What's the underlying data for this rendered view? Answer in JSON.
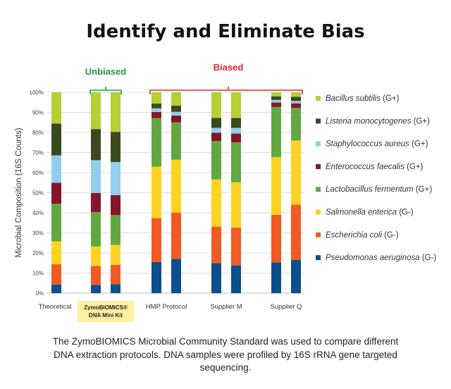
{
  "title": "Identify and Eliminate Bias",
  "caption": "The ZymoBIOMICS Microbial Community Standard was used to compare different DNA extraction protocols. DNA samples were profiled by 16S rRNA gene targeted sequencing.",
  "chart_data": {
    "type": "bar",
    "stacked": true,
    "ylabel": "Microbial Composition (16S Counts)",
    "ylim": [
      0,
      100
    ],
    "yticks": [
      "0%",
      "10%",
      "20%",
      "30%",
      "40%",
      "50%",
      "60%",
      "70%",
      "80%",
      "90%",
      "100%"
    ],
    "grid": true,
    "legend_position": "right",
    "groups": [
      {
        "label": "Theoretical",
        "highlight": false,
        "bars": 1
      },
      {
        "label": "ZymoBIOMICS® DNA Mini Kit",
        "label_lines": [
          "ZymoBIOMICS®",
          "DNA Mini Kit"
        ],
        "highlight": true,
        "highlight_color": "#fdf0a0",
        "bars": 2
      },
      {
        "label": "HMP Protocol",
        "highlight": false,
        "bars": 2
      },
      {
        "label": "Supplier M",
        "highlight": false,
        "bars": 2
      },
      {
        "label": "Supplier Q",
        "highlight": false,
        "bars": 2
      }
    ],
    "brackets": [
      {
        "label": "Unbiased",
        "color": "#1a9a4a",
        "groups": [
          "ZymoBIOMICS® DNA Mini Kit"
        ]
      },
      {
        "label": "Biased",
        "color": "#e0282a",
        "groups": [
          "HMP Protocol",
          "Supplier M",
          "Supplier Q"
        ]
      }
    ],
    "series": [
      {
        "name": "Pseudomonas aeruginosa",
        "gram": "(G-)",
        "color": "#0b4f8c",
        "values": [
          4.3,
          4.1,
          4.5,
          15.5,
          17.1,
          14.9,
          13.8,
          15.3,
          16.5
        ]
      },
      {
        "name": "Escherichia coli",
        "gram": " (G-)",
        "color": "#f15a24",
        "values": [
          10.1,
          9.4,
          9.6,
          21.9,
          23.0,
          18.2,
          18.9,
          23.7,
          27.5
        ]
      },
      {
        "name": "Salmonella enterica",
        "gram": "(G-)",
        "color": "#fdd323",
        "values": [
          11.4,
          9.7,
          9.9,
          25.6,
          26.4,
          23.5,
          22.5,
          28.7,
          32.0
        ]
      },
      {
        "name": "Lactobacillus fermentum",
        "gram": "(G+)",
        "color": "#62a744",
        "values": [
          18.7,
          17.2,
          14.9,
          24.2,
          18.6,
          19.1,
          19.9,
          25.0,
          16.2
        ]
      },
      {
        "name": "Enterococcus faecalis",
        "gram": "(G+)",
        "color": "#86152c",
        "values": [
          10.5,
          9.5,
          9.9,
          3.0,
          3.3,
          4.2,
          4.4,
          2.2,
          2.3
        ]
      },
      {
        "name": "Staphylococcus aureus",
        "gram": "(G+)",
        "color": "#93cdee",
        "values": [
          13.6,
          16.3,
          16.5,
          1.8,
          1.9,
          2.4,
          2.8,
          1.3,
          1.2
        ]
      },
      {
        "name": "Listeria monocytogenes",
        "gram": "(G+)",
        "color": "#3a4a1e",
        "values": [
          15.8,
          15.5,
          15.0,
          2.4,
          3.1,
          4.9,
          4.9,
          1.8,
          2.1
        ]
      },
      {
        "name": "Bacillus subtilis",
        "gram": "(G+)",
        "color": "#b5cf34",
        "values": [
          15.6,
          18.3,
          19.7,
          5.6,
          6.6,
          12.8,
          12.8,
          2.0,
          2.2
        ]
      }
    ]
  }
}
